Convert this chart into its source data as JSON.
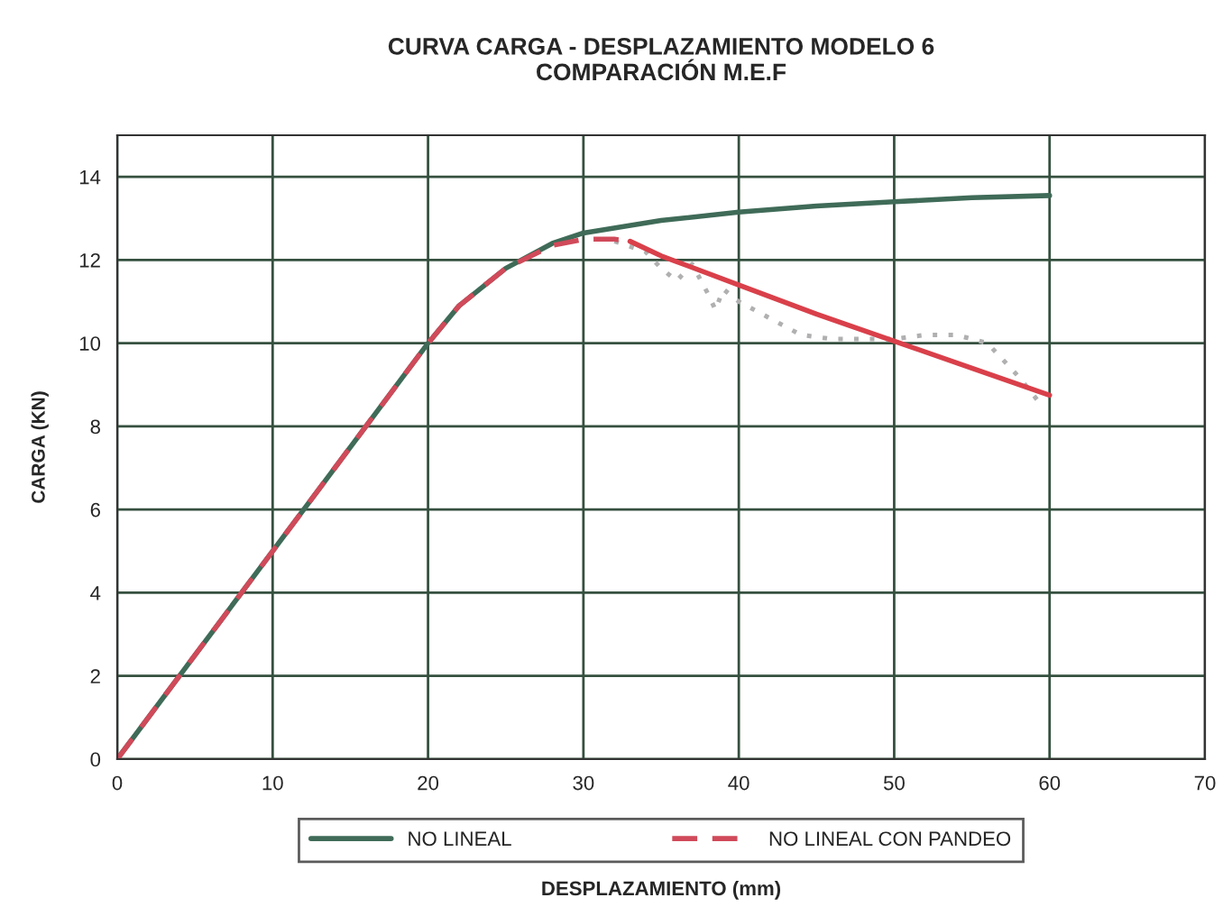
{
  "chart_data": {
    "type": "line",
    "title": "CURVA CARGA - DESPLAZAMIENTO MODELO 6\nCOMPARACIÓN M.E.F",
    "xlabel": "DESPLAZAMIENTO (mm)",
    "ylabel": "CARGA (KN)",
    "xlim": [
      0,
      70
    ],
    "xticks": [
      0,
      10,
      20,
      30,
      40,
      50,
      60,
      70
    ],
    "ylim": [
      0,
      15
    ],
    "yticks": [
      0,
      2,
      4,
      6,
      8,
      10,
      12,
      14
    ],
    "grid": true,
    "legend": "bottom",
    "marker": "none",
    "series": [
      {
        "name": "NO LINEAL",
        "color": "#3f6b58",
        "line_style": "solid",
        "x": [
          0,
          20,
          22,
          25,
          28,
          30,
          35,
          40,
          45,
          50,
          55,
          60
        ],
        "values": [
          0,
          10,
          10.9,
          11.8,
          12.4,
          12.65,
          12.95,
          13.15,
          13.3,
          13.4,
          13.5,
          13.55
        ]
      },
      {
        "color": "#b0b0b0",
        "line_style": "dotted",
        "x": [
          32,
          34,
          35,
          36,
          37,
          38,
          38.5,
          39,
          40,
          42,
          44,
          46,
          50,
          52,
          54,
          56,
          58,
          59.5
        ],
        "values": [
          12.45,
          12.2,
          11.8,
          11.5,
          11.9,
          11.2,
          10.8,
          11.3,
          11,
          10.6,
          10.2,
          10.1,
          10.1,
          10.2,
          10.2,
          10,
          9.2,
          8.5
        ]
      },
      {
        "name": "NO LINEAL CON PANDEO",
        "color": "#d04a5a",
        "line_style": "dashed",
        "x": [
          0,
          20,
          22,
          25,
          28,
          30,
          32,
          33
        ],
        "values": [
          0,
          10,
          10.9,
          11.8,
          12.35,
          12.5,
          12.5,
          12.45
        ]
      },
      {
        "color": "#d9404a",
        "line_style": "solid",
        "x": [
          33,
          35,
          40,
          45,
          50,
          55,
          60
        ],
        "values": [
          12.45,
          12.1,
          11.4,
          10.7,
          10.05,
          9.4,
          8.75
        ]
      }
    ]
  }
}
